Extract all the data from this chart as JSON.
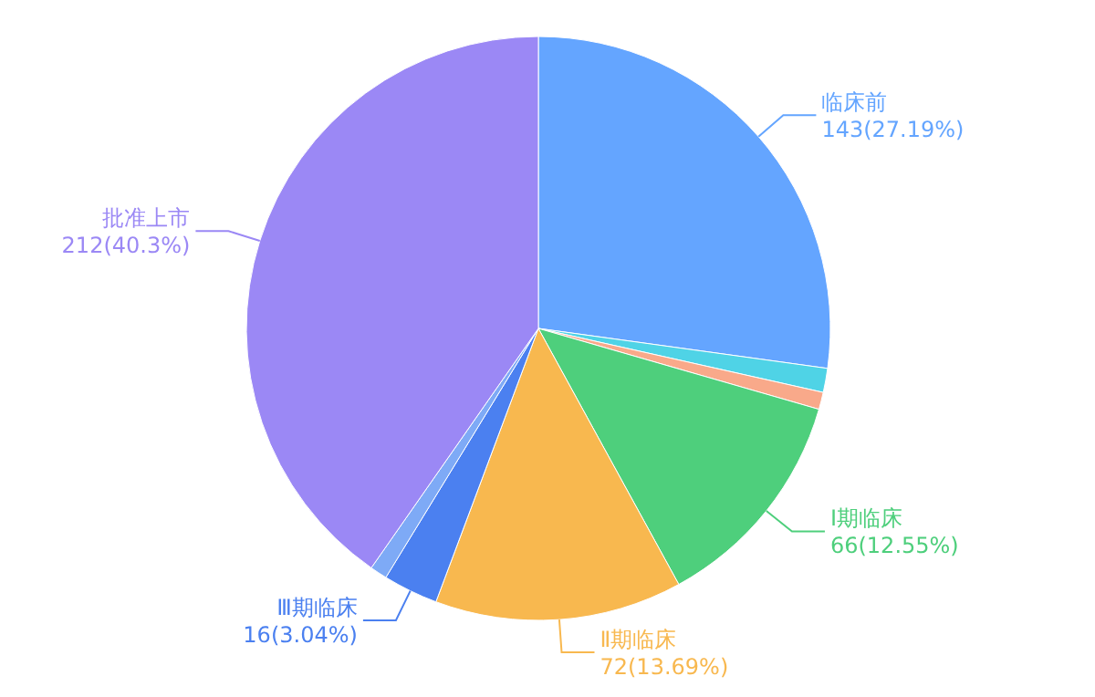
{
  "chart_data": {
    "type": "pie",
    "categories": [
      "临床前",
      null,
      null,
      "Ⅰ期临床",
      "Ⅱ期临床",
      "Ⅲ期临床",
      null,
      "批准上市"
    ],
    "values": [
      143,
      7,
      5,
      66,
      72,
      16,
      5,
      212
    ],
    "colors": [
      "#64a5ff",
      "#4fd3e6",
      "#f9a98a",
      "#4ecf7c",
      "#f8b84f",
      "#4b80f0",
      "#7eaaf6",
      "#9b88f5"
    ],
    "value_labels": [
      "143(27.19%)",
      null,
      null,
      "66(12.55%)",
      "72(13.69%)",
      "16(3.04%)",
      null,
      "212(40.3%)"
    ]
  }
}
